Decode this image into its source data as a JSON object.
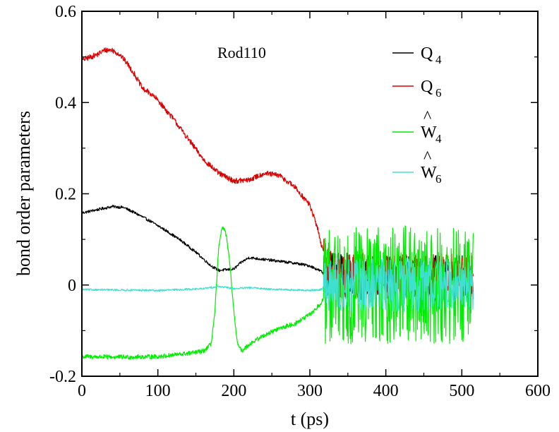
{
  "chart_data": {
    "type": "line",
    "title": "",
    "annotation": "Rod110",
    "xlabel": "t (ps)",
    "ylabel": "bond order parameters",
    "xlim": [
      0,
      600
    ],
    "ylim": [
      -0.2,
      0.6
    ],
    "xticks": [
      0,
      100,
      200,
      300,
      400,
      500,
      600
    ],
    "xtick_labels": [
      "0",
      "100",
      "200",
      "300",
      "400",
      "500",
      "600"
    ],
    "yticks": [
      -0.2,
      0,
      0.2,
      0.4,
      0.6
    ],
    "ytick_labels": [
      "-0.2",
      "0",
      "0.2",
      "0.4",
      "0.6"
    ],
    "grid": false,
    "legend_position": "top-right",
    "series": [
      {
        "name": "Q4",
        "legend_main": "Q",
        "legend_sub": "4",
        "legend_hat": "",
        "color": "#000000",
        "noise": 0.003,
        "noise_after": 0.05,
        "x": [
          0,
          20,
          40,
          55,
          70,
          90,
          110,
          130,
          150,
          170,
          180,
          200,
          210,
          220,
          240,
          260,
          280,
          300,
          315,
          320,
          330,
          350,
          380,
          420,
          460,
          500,
          515
        ],
        "y": [
          0.158,
          0.165,
          0.172,
          0.17,
          0.158,
          0.14,
          0.12,
          0.098,
          0.072,
          0.042,
          0.032,
          0.035,
          0.05,
          0.06,
          0.056,
          0.052,
          0.048,
          0.042,
          0.03,
          0.02,
          0.02,
          0.02,
          0.015,
          0.015,
          0.015,
          0.015,
          0.015
        ]
      },
      {
        "name": "Q6",
        "legend_main": "Q",
        "legend_sub": "6",
        "legend_hat": "",
        "color": "#dd0000",
        "noise": 0.006,
        "noise_after": 0.05,
        "x": [
          0,
          20,
          30,
          40,
          50,
          60,
          70,
          80,
          90,
          100,
          120,
          140,
          160,
          180,
          200,
          220,
          240,
          260,
          280,
          300,
          310,
          320,
          330,
          360,
          400,
          450,
          515
        ],
        "y": [
          0.493,
          0.505,
          0.515,
          0.515,
          0.505,
          0.485,
          0.46,
          0.43,
          0.42,
          0.405,
          0.365,
          0.32,
          0.275,
          0.245,
          0.228,
          0.23,
          0.245,
          0.24,
          0.215,
          0.175,
          0.125,
          0.055,
          0.02,
          0.02,
          0.02,
          0.02,
          0.02
        ]
      },
      {
        "name": "W4",
        "legend_main": "W",
        "legend_sub": "4",
        "legend_hat": "^",
        "color": "#00ee00",
        "noise": 0.005,
        "noise_after": 0.13,
        "x": [
          0,
          50,
          100,
          140,
          160,
          170,
          175,
          180,
          185,
          190,
          195,
          200,
          205,
          210,
          220,
          240,
          260,
          280,
          300,
          315,
          320,
          330,
          400,
          515
        ],
        "y": [
          -0.157,
          -0.158,
          -0.157,
          -0.15,
          -0.145,
          -0.13,
          -0.06,
          0.08,
          0.13,
          0.11,
          0.04,
          -0.06,
          -0.13,
          -0.145,
          -0.13,
          -0.11,
          -0.095,
          -0.085,
          -0.065,
          -0.04,
          -0.02,
          0.0,
          0.0,
          0.0
        ]
      },
      {
        "name": "W6",
        "legend_main": "W",
        "legend_sub": "6",
        "legend_hat": "^",
        "color": "#40e0d0",
        "noise": 0.002,
        "noise_after": 0.06,
        "x": [
          0,
          100,
          160,
          180,
          200,
          220,
          260,
          300,
          315,
          320,
          400,
          515
        ],
        "y": [
          -0.01,
          -0.012,
          -0.008,
          -0.003,
          -0.008,
          -0.006,
          -0.01,
          -0.012,
          -0.01,
          0.0,
          0.0,
          0.0
        ]
      }
    ]
  }
}
